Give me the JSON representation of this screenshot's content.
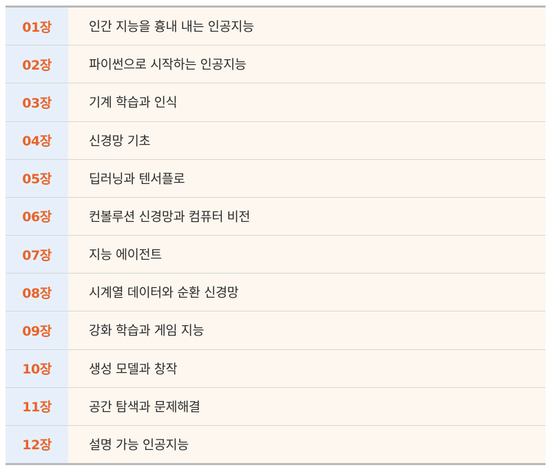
{
  "chapters": [
    {
      "number": "01장",
      "title": "인간 지능을 흉내 내는 인공지능"
    },
    {
      "number": "02장",
      "title": "파이썬으로 시작하는 인공지능"
    },
    {
      "number": "03장",
      "title": "기계 학습과 인식"
    },
    {
      "number": "04장",
      "title": "신경망 기초"
    },
    {
      "number": "05장",
      "title": "딥러닝과 텐서플로"
    },
    {
      "number": "06장",
      "title": "컨볼루션 신경망과 컴퓨터 비전"
    },
    {
      "number": "07장",
      "title": "지능 에이전트"
    },
    {
      "number": "08장",
      "title": "시계열 데이터와 순환 신경망"
    },
    {
      "number": "09장",
      "title": "강화 학습과 게임 지능"
    },
    {
      "number": "10장",
      "title": "생성 모델과 창작"
    },
    {
      "number": "11장",
      "title": "공간 탐색과 문제해결"
    },
    {
      "number": "12장",
      "title": "설명 가능 인공지능"
    }
  ],
  "colors": {
    "chapter_number": "#e8632a",
    "number_column_bg": "#e7f0fa",
    "title_column_bg": "#fdf7ef",
    "rule": "#b9b9b9"
  }
}
